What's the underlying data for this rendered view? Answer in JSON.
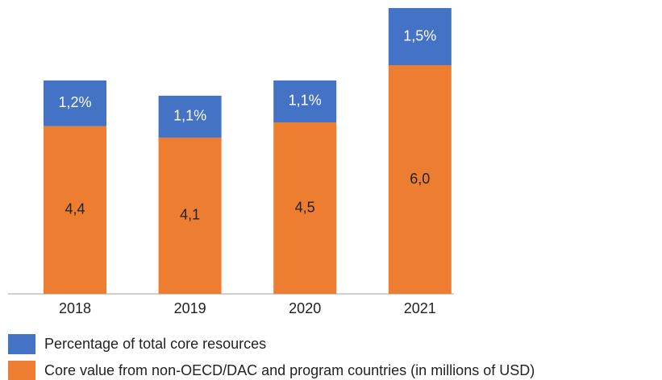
{
  "chart_data": {
    "type": "stacked_bar",
    "categories": [
      "2018",
      "2019",
      "2020",
      "2021"
    ],
    "series": [
      {
        "name": "Percentage of total core resources",
        "color": "#4472c4",
        "values": [
          1.2,
          1.1,
          1.1,
          1.5
        ],
        "value_labels": [
          "1,2%",
          "1,1%",
          "1,1%",
          "1,5%"
        ]
      },
      {
        "name": "Core value from non-OECD/DAC and program countries (in millions of USD)",
        "color": "#ed7d31",
        "values": [
          4.4,
          4.1,
          4.5,
          6.0
        ],
        "value_labels": [
          "4,4",
          "4,1",
          "4,5",
          "6,0"
        ]
      }
    ]
  }
}
